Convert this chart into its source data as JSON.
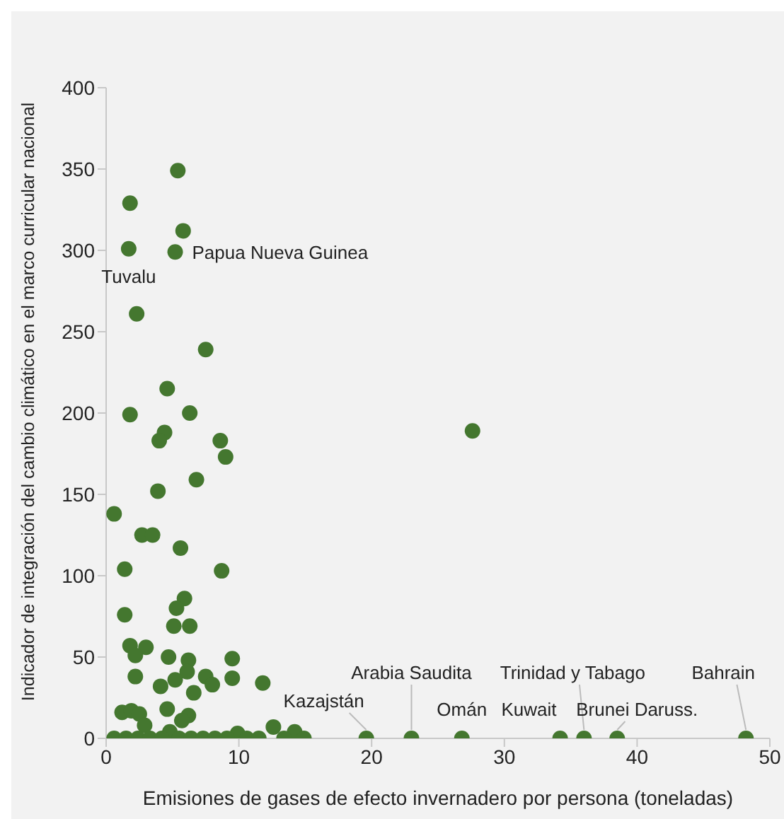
{
  "chart_data": {
    "type": "scatter",
    "xlabel": "Emisiones de gases de efecto invernadero por persona (toneladas)",
    "ylabel": "Indicador de integración del cambio climático en el marco curricular nacional",
    "x": [
      5.4,
      1.8,
      5.8,
      1.7,
      5.2,
      2.3,
      7.5,
      4.6,
      1.8,
      6.3,
      4.4,
      27.6,
      4.0,
      8.6,
      9.0,
      6.8,
      3.9,
      0.6,
      2.7,
      3.5,
      5.6,
      1.4,
      8.7,
      5.9,
      5.3,
      1.4,
      5.1,
      6.3,
      1.8,
      3.0,
      2.2,
      4.7,
      6.2,
      9.5,
      2.2,
      6.1,
      5.2,
      7.5,
      8.0,
      9.5,
      4.1,
      11.8,
      6.6,
      1.2,
      1.9,
      2.5,
      4.6,
      6.2,
      5.7,
      2.9,
      4.8,
      9.9,
      12.6,
      14.2,
      0.6,
      1.5,
      2.4,
      3.3,
      4.2,
      5.5,
      6.4,
      7.3,
      8.2,
      9.1,
      10.6,
      11.5,
      13.4,
      14.9,
      19.6,
      23.0,
      26.8,
      34.2,
      36.0,
      38.5,
      48.2
    ],
    "values": [
      349,
      329,
      312,
      301,
      299,
      261,
      239,
      215,
      199,
      200,
      188,
      189,
      183,
      183,
      173,
      159,
      152,
      138,
      125,
      125,
      117,
      104,
      103,
      86,
      80,
      76,
      69,
      69,
      57,
      56,
      51,
      50,
      48,
      49,
      38,
      41,
      36,
      38,
      33,
      37,
      32,
      34,
      28,
      16,
      17,
      15,
      18,
      14,
      11,
      8,
      4,
      3,
      7,
      4,
      0,
      0,
      0,
      0,
      0,
      0,
      0,
      0,
      0,
      0,
      0,
      0,
      0,
      0,
      0,
      0,
      0,
      0,
      0,
      0,
      0
    ],
    "color": "#44772f",
    "marker": "circle",
    "xlim": [
      0,
      50
    ],
    "ylim": [
      0,
      400
    ],
    "xticks": [
      0,
      10,
      20,
      30,
      40,
      50
    ],
    "yticks": [
      0,
      50,
      100,
      150,
      200,
      250,
      300,
      350,
      400
    ],
    "grid": false,
    "legend": false,
    "annotations": [
      {
        "text": "Tuvalu",
        "x": 1.7,
        "y": 301
      },
      {
        "text": "Papua Nueva Guinea",
        "x": 5.2,
        "y": 299
      },
      {
        "text": "Kazajstán",
        "x": 19.6,
        "y": 0
      },
      {
        "text": "Arabia Saudita",
        "x": 23.0,
        "y": 0
      },
      {
        "text": "Omán",
        "x": 26.8,
        "y": 0
      },
      {
        "text": "Kuwait",
        "x": 34.2,
        "y": 0
      },
      {
        "text": "Trinidad y Tabago",
        "x": 36.0,
        "y": 0
      },
      {
        "text": "Brunei Daruss.",
        "x": 38.5,
        "y": 0
      },
      {
        "text": "Bahrain",
        "x": 48.2,
        "y": 0
      }
    ]
  }
}
